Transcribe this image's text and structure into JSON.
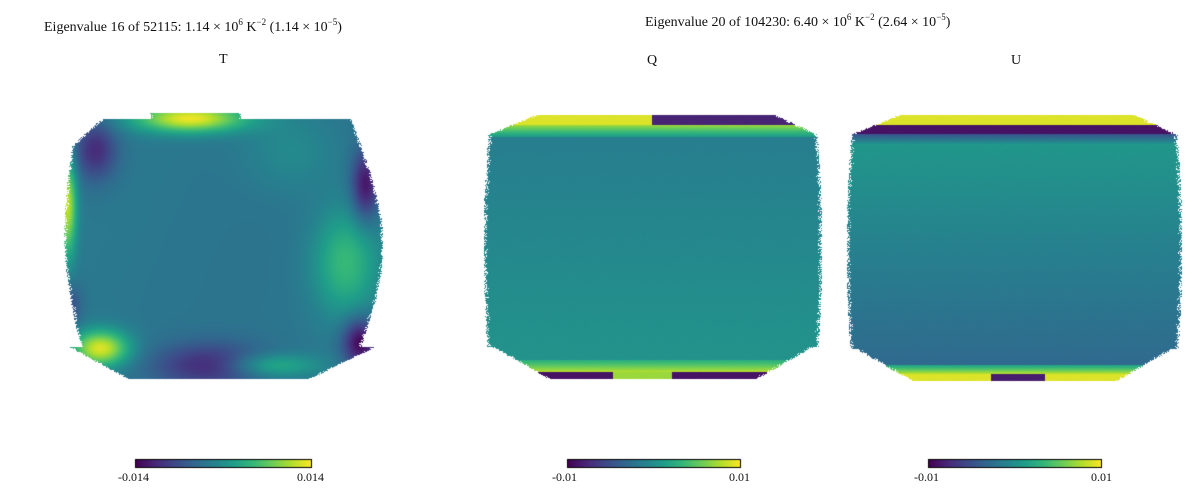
{
  "left_title": {
    "prefix": "Eigenvalue 16 of 52115: 1.14 × 10",
    "exp1": "6",
    "mid": " K",
    "exp2": "−2",
    "paren": " (1.14 × 10",
    "exp3": "−5",
    "close": ")"
  },
  "right_title": {
    "prefix": "Eigenvalue 20 of 104230: 6.40 × 10",
    "exp1": "6",
    "mid": " K",
    "exp2": "−2",
    "paren": " (2.64 × 10",
    "exp3": "−5",
    "close": ")"
  },
  "colors": {
    "low": "#440154",
    "mid": "#21918c",
    "high": "#fde725"
  },
  "chart_data": [
    {
      "type": "heatmap",
      "title": "T",
      "colorbar": {
        "min": -0.014,
        "max": 0.014,
        "min_label": "-0.014",
        "max_label": "0.014"
      }
    },
    {
      "type": "heatmap",
      "title": "Q",
      "colorbar": {
        "min": -0.01,
        "max": 0.01,
        "min_label": "-0.01",
        "max_label": "0.01"
      }
    },
    {
      "type": "heatmap",
      "title": "U",
      "colorbar": {
        "min": -0.01,
        "max": 0.01,
        "min_label": "-0.01",
        "max_label": "0.01"
      }
    }
  ]
}
